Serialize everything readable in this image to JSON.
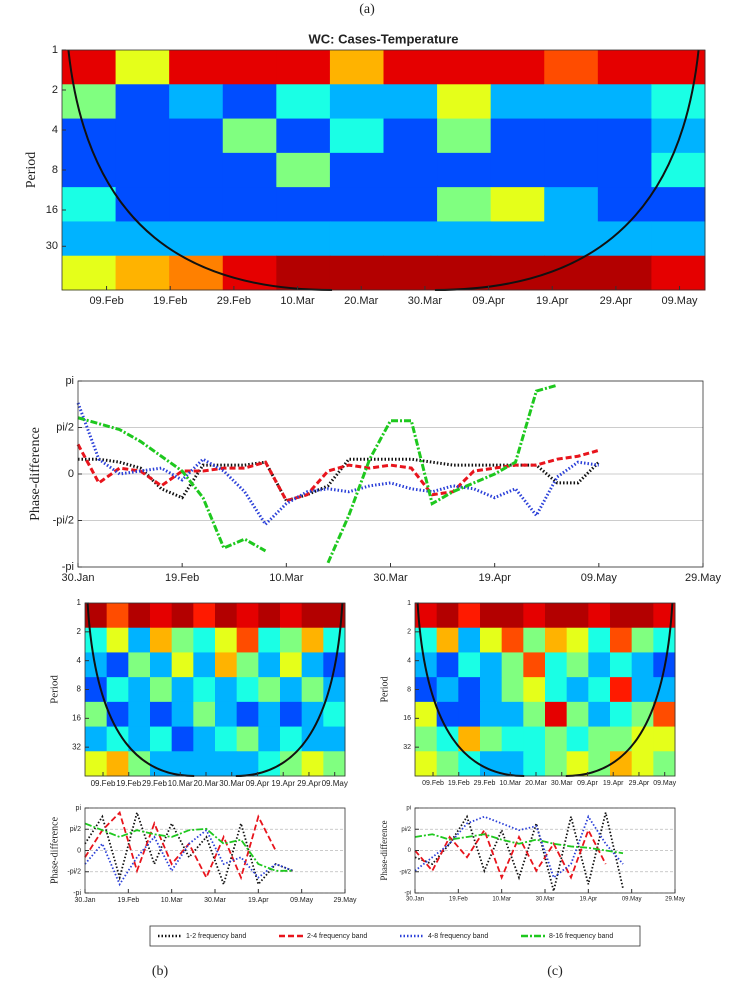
{
  "legend": [
    {
      "name": "1-2 frequency band",
      "color": "#111111",
      "style": "dotted"
    },
    {
      "name": "2-4 frequency band",
      "color": "#e8141c",
      "style": "dashed"
    },
    {
      "name": "4-8 frequency band",
      "color": "#2a3fd8",
      "style": "dotted"
    },
    {
      "name": "8-16 frequency band",
      "color": "#1ec81e",
      "style": "dashdot"
    }
  ],
  "chart_data": [
    {
      "type": "heatmap",
      "label": "(a)",
      "title": "WC: Cases-Temperature",
      "y_label": "Period",
      "colormap": "jet",
      "ylog": true,
      "yreverse": true,
      "xlim": [
        3,
        104
      ],
      "ylim": [
        1,
        64
      ],
      "yticks": [
        1,
        2,
        4,
        8,
        16,
        30
      ],
      "xticks": [
        {
          "value": 10,
          "label": "09.Feb"
        },
        {
          "value": 20,
          "label": "19.Feb"
        },
        {
          "value": 30,
          "label": "29.Feb"
        },
        {
          "value": 40,
          "label": "10.Mar"
        },
        {
          "value": 50,
          "label": "20.Mar"
        },
        {
          "value": 60,
          "label": "30.Mar"
        },
        {
          "value": 70,
          "label": "09.Apr"
        },
        {
          "value": 80,
          "label": "19.Apr"
        },
        {
          "value": 90,
          "label": "29.Apr"
        },
        {
          "value": 100,
          "label": "09.May"
        }
      ],
      "z": [
        [
          0.9,
          0.6,
          0.9,
          0.9,
          0.9,
          0.7,
          0.9,
          0.9,
          0.9,
          0.8,
          0.9,
          0.9
        ],
        [
          0.5,
          0.2,
          0.3,
          0.2,
          0.4,
          0.3,
          0.3,
          0.6,
          0.3,
          0.3,
          0.3,
          0.4
        ],
        [
          0.2,
          0.2,
          0.2,
          0.5,
          0.2,
          0.4,
          0.2,
          0.5,
          0.2,
          0.2,
          0.2,
          0.3
        ],
        [
          0.2,
          0.2,
          0.2,
          0.2,
          0.5,
          0.2,
          0.2,
          0.2,
          0.2,
          0.2,
          0.2,
          0.4
        ],
        [
          0.4,
          0.2,
          0.2,
          0.2,
          0.2,
          0.2,
          0.2,
          0.5,
          0.6,
          0.3,
          0.2,
          0.2
        ],
        [
          0.3,
          0.3,
          0.3,
          0.3,
          0.3,
          0.3,
          0.3,
          0.3,
          0.3,
          0.3,
          0.3,
          0.3
        ],
        [
          0.6,
          0.7,
          0.75,
          0.9,
          0.95,
          0.95,
          0.95,
          0.95,
          0.95,
          0.95,
          0.95,
          0.9
        ]
      ]
    },
    {
      "type": "line",
      "y_label": "Phase-difference",
      "grid": true,
      "xlim": [
        0,
        120
      ],
      "ylim": [
        -3.1416,
        3.1416
      ],
      "yticks": [
        {
          "value": 3.1416,
          "label": "pi"
        },
        {
          "value": 1.5708,
          "label": "pi/2"
        },
        0,
        {
          "value": -1.5708,
          "label": "-pi/2"
        },
        {
          "value": -3.1416,
          "label": "-pi"
        }
      ],
      "xticks": [
        {
          "value": 0,
          "label": "30.Jan"
        },
        {
          "value": 20,
          "label": "19.Feb"
        },
        {
          "value": 40,
          "label": "10.Mar"
        },
        {
          "value": 60,
          "label": "30.Mar"
        },
        {
          "value": 80,
          "label": "19.Apr"
        },
        {
          "value": 100,
          "label": "09.May"
        },
        {
          "value": 120,
          "label": "29.May"
        }
      ],
      "x": [
        0,
        4,
        8,
        12,
        16,
        20,
        24,
        28,
        32,
        36,
        40,
        44,
        48,
        52,
        56,
        60,
        64,
        68,
        72,
        76,
        80,
        84,
        88,
        92,
        96,
        100
      ],
      "series": [
        {
          "values": [
            0.5,
            0.5,
            0.4,
            0.2,
            -0.5,
            -0.8,
            0.3,
            0.3,
            0.3,
            0.4,
            -0.9,
            -0.7,
            -0.4,
            0.5,
            0.5,
            0.5,
            0.5,
            0.4,
            0.3,
            0.3,
            0.3,
            0.3,
            0.3,
            -0.3,
            -0.3,
            0.4
          ]
        },
        {
          "values": [
            1.0,
            -0.3,
            0.2,
            0.1,
            -0.4,
            0.1,
            0.1,
            0.2,
            0.2,
            0.4,
            -0.9,
            -0.7,
            0.1,
            0.3,
            0.2,
            0.3,
            0.2,
            -0.7,
            -0.6,
            0.1,
            0.2,
            0.3,
            0.3,
            0.5,
            0.6,
            0.8
          ]
        },
        {
          "values": [
            2.4,
            0.5,
            0.0,
            0.1,
            0.2,
            -0.2,
            0.5,
            0.1,
            -0.6,
            -1.7,
            -1.0,
            -0.6,
            -0.5,
            -0.6,
            -0.4,
            -0.3,
            -0.5,
            -0.6,
            -0.4,
            -0.5,
            -0.8,
            -0.5,
            -1.4,
            -0.1,
            0.4,
            0.3
          ]
        },
        {
          "values": [
            1.9,
            1.7,
            1.5,
            1.1,
            0.6,
            0.1,
            -0.8,
            -2.5,
            -2.2,
            -2.6,
            null,
            null,
            -3.0,
            -1.4,
            0.5,
            1.8,
            1.8,
            -1.0,
            -0.6,
            -0.3,
            0.0,
            0.4,
            2.8,
            3.0,
            null,
            null
          ]
        }
      ]
    },
    {
      "type": "heatmap",
      "label": "(b)",
      "y_label": "Period",
      "colormap": "jet",
      "ylog": true,
      "yreverse": true,
      "xlim": [
        3,
        104
      ],
      "ylim": [
        1,
        64
      ],
      "yticks": [
        1,
        2,
        4,
        8,
        16,
        32
      ],
      "xticks": [
        {
          "value": 10,
          "label": "09.Feb"
        },
        {
          "value": 20,
          "label": "19.Feb"
        },
        {
          "value": 30,
          "label": "29.Feb"
        },
        {
          "value": 40,
          "label": "10.Mar"
        },
        {
          "value": 50,
          "label": "20.Mar"
        },
        {
          "value": 60,
          "label": "30.Mar"
        },
        {
          "value": 70,
          "label": "09.Apr"
        },
        {
          "value": 80,
          "label": "19.Apr"
        },
        {
          "value": 90,
          "label": "29.Apr"
        },
        {
          "value": 100,
          "label": "09.May"
        }
      ],
      "z": [
        [
          0.95,
          0.8,
          0.95,
          0.9,
          0.95,
          0.85,
          0.95,
          0.9,
          0.95,
          0.9,
          0.95,
          0.95
        ],
        [
          0.4,
          0.6,
          0.3,
          0.7,
          0.5,
          0.4,
          0.6,
          0.8,
          0.4,
          0.5,
          0.7,
          0.4
        ],
        [
          0.3,
          0.2,
          0.5,
          0.3,
          0.6,
          0.3,
          0.7,
          0.5,
          0.3,
          0.6,
          0.3,
          0.2
        ],
        [
          0.2,
          0.4,
          0.3,
          0.5,
          0.3,
          0.4,
          0.3,
          0.4,
          0.5,
          0.3,
          0.5,
          0.3
        ],
        [
          0.5,
          0.2,
          0.3,
          0.2,
          0.3,
          0.5,
          0.3,
          0.2,
          0.3,
          0.2,
          0.3,
          0.4
        ],
        [
          0.3,
          0.4,
          0.3,
          0.4,
          0.2,
          0.3,
          0.4,
          0.5,
          0.3,
          0.4,
          0.3,
          0.3
        ],
        [
          0.6,
          0.7,
          0.5,
          0.3,
          0.3,
          0.3,
          0.3,
          0.3,
          0.4,
          0.5,
          0.6,
          0.5
        ]
      ]
    },
    {
      "type": "line",
      "y_label": "Phase-difference",
      "grid": true,
      "xlim": [
        0,
        120
      ],
      "ylim": [
        -3.1416,
        3.1416
      ],
      "yticks": [
        {
          "value": 3.1416,
          "label": "pi"
        },
        {
          "value": 1.5708,
          "label": "pi/2"
        },
        0,
        {
          "value": -1.5708,
          "label": "-pi/2"
        },
        {
          "value": -3.1416,
          "label": "-pi"
        }
      ],
      "xticks": [
        {
          "value": 0,
          "label": "30.Jan"
        },
        {
          "value": 20,
          "label": "19.Feb"
        },
        {
          "value": 40,
          "label": "10.Mar"
        },
        {
          "value": 60,
          "label": "30.Mar"
        },
        {
          "value": 80,
          "label": "19.Apr"
        },
        {
          "value": 100,
          "label": "09.May"
        },
        {
          "value": 120,
          "label": "29.May"
        }
      ],
      "x": [
        0,
        8,
        16,
        24,
        32,
        40,
        48,
        56,
        64,
        72,
        80,
        88,
        96
      ],
      "series": [
        {
          "values": [
            0.5,
            2.5,
            -2.0,
            2.8,
            -1.0,
            2.0,
            -0.5,
            1.0,
            -2.5,
            2.0,
            -2.5,
            -1.0,
            -1.5
          ]
        },
        {
          "values": [
            -0.5,
            1.5,
            2.8,
            -1.5,
            2.0,
            -1.0,
            0.5,
            -2.0,
            1.0,
            -2.0,
            2.5,
            0.0,
            null
          ]
        },
        {
          "values": [
            -1.0,
            0.5,
            -2.5,
            -0.5,
            1.0,
            -1.5,
            0.5,
            1.5,
            -1.0,
            -0.5,
            -2.0,
            -1.0,
            -1.5
          ]
        },
        {
          "values": [
            2.0,
            1.5,
            1.0,
            1.5,
            1.2,
            1.0,
            1.5,
            1.6,
            0.5,
            0.8,
            -1.0,
            -1.5,
            -1.5
          ]
        }
      ]
    },
    {
      "type": "heatmap",
      "label": "(c)",
      "y_label": "Period",
      "colormap": "jet",
      "ylog": true,
      "yreverse": true,
      "xlim": [
        3,
        104
      ],
      "ylim": [
        1,
        64
      ],
      "yticks": [
        1,
        2,
        4,
        8,
        16,
        32
      ],
      "xticks": [
        {
          "value": 10,
          "label": "09.Feb"
        },
        {
          "value": 20,
          "label": "19.Feb"
        },
        {
          "value": 30,
          "label": "29.Feb"
        },
        {
          "value": 40,
          "label": "10.Mar"
        },
        {
          "value": 50,
          "label": "20.Mar"
        },
        {
          "value": 60,
          "label": "30.Mar"
        },
        {
          "value": 70,
          "label": "09.Apr"
        },
        {
          "value": 80,
          "label": "19.Apr"
        },
        {
          "value": 90,
          "label": "29.Apr"
        },
        {
          "value": 100,
          "label": "09.May"
        }
      ],
      "z": [
        [
          0.9,
          0.95,
          0.85,
          0.95,
          0.95,
          0.9,
          0.95,
          0.95,
          0.9,
          0.95,
          0.95,
          0.9
        ],
        [
          0.4,
          0.7,
          0.3,
          0.6,
          0.8,
          0.5,
          0.7,
          0.6,
          0.4,
          0.8,
          0.5,
          0.4
        ],
        [
          0.3,
          0.2,
          0.4,
          0.3,
          0.5,
          0.8,
          0.4,
          0.5,
          0.3,
          0.4,
          0.3,
          0.2
        ],
        [
          0.2,
          0.3,
          0.2,
          0.3,
          0.5,
          0.6,
          0.4,
          0.3,
          0.4,
          0.85,
          0.3,
          0.3
        ],
        [
          0.6,
          0.2,
          0.2,
          0.3,
          0.3,
          0.5,
          0.9,
          0.5,
          0.3,
          0.4,
          0.5,
          0.8
        ],
        [
          0.5,
          0.4,
          0.7,
          0.5,
          0.4,
          0.4,
          0.5,
          0.4,
          0.5,
          0.5,
          0.6,
          0.6
        ],
        [
          0.6,
          0.5,
          0.4,
          0.3,
          0.3,
          0.4,
          0.5,
          0.6,
          0.5,
          0.7,
          0.6,
          0.5
        ]
      ]
    },
    {
      "type": "line",
      "y_label": "Phase-difference",
      "grid": true,
      "xlim": [
        0,
        120
      ],
      "ylim": [
        -3.1416,
        3.1416
      ],
      "yticks": [
        {
          "value": 3.1416,
          "label": "pi"
        },
        {
          "value": 1.5708,
          "label": "pi/2"
        },
        0,
        {
          "value": -1.5708,
          "label": "-pi/2"
        },
        {
          "value": -3.1416,
          "label": "-pi"
        }
      ],
      "xticks": [
        {
          "value": 0,
          "label": "30.Jan"
        },
        {
          "value": 20,
          "label": "19.Feb"
        },
        {
          "value": 40,
          "label": "10.Mar"
        },
        {
          "value": 60,
          "label": "30.Mar"
        },
        {
          "value": 80,
          "label": "19.Apr"
        },
        {
          "value": 100,
          "label": "09.May"
        },
        {
          "value": 120,
          "label": "29.May"
        }
      ],
      "x": [
        0,
        8,
        16,
        24,
        32,
        40,
        48,
        56,
        64,
        72,
        80,
        88,
        96
      ],
      "series": [
        {
          "values": [
            -0.5,
            -1.0,
            0.5,
            2.5,
            -1.5,
            1.5,
            -2.0,
            2.0,
            -3.0,
            2.5,
            -2.5,
            2.8,
            -2.8
          ]
        },
        {
          "values": [
            0.0,
            -1.5,
            1.0,
            -0.5,
            1.5,
            -2.0,
            1.0,
            -1.5,
            0.5,
            -2.0,
            1.5,
            -1.0,
            null
          ]
        },
        {
          "values": [
            -1.5,
            -0.5,
            0.5,
            2.0,
            2.5,
            2.0,
            1.5,
            1.8,
            -2.0,
            -1.0,
            2.5,
            0.5,
            -1.0
          ]
        },
        {
          "values": [
            1.0,
            1.2,
            0.8,
            1.0,
            1.2,
            0.8,
            0.5,
            0.8,
            0.5,
            0.3,
            0.2,
            0.0,
            -0.2
          ]
        }
      ]
    }
  ]
}
